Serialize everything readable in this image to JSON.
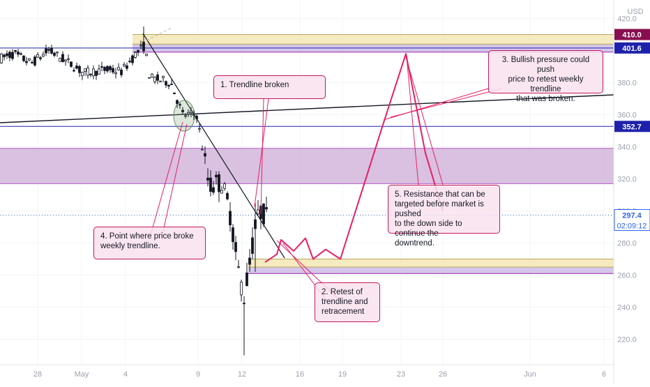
{
  "currency": "USD",
  "chart_data": {
    "type": "candlestick",
    "ylim": [
      200,
      428
    ],
    "y_ticks": [
      "420.0",
      "400.0",
      "380.0",
      "360.0",
      "340.0",
      "320.0",
      "300.0",
      "280.0",
      "260.0",
      "240.0",
      "220.0"
    ],
    "x_ticks": [
      "28",
      "May",
      "4",
      "9",
      "12",
      "16",
      "19",
      "23",
      "26",
      "Jun",
      "6"
    ],
    "price_labels": [
      {
        "text": "410.0",
        "value": 410.0,
        "color": "#880e4f"
      },
      {
        "text": "401.6",
        "value": 401.6,
        "color": "#1e22aa"
      },
      {
        "text": "352.7",
        "value": 352.7,
        "color": "#1e22aa"
      },
      {
        "text": "297.4",
        "value": 297.4,
        "color": "#2962ff"
      }
    ],
    "countdown": "02:09:12",
    "horizontal_levels": [
      401.6,
      352.7,
      297.4
    ],
    "zones": [
      {
        "top": 410,
        "bottom": 404,
        "color": "#f3e6b5"
      },
      {
        "top": 404,
        "bottom": 399,
        "color": "#cdbde6"
      },
      {
        "top": 339,
        "bottom": 317,
        "color": "#d3b6dc"
      },
      {
        "top": 270,
        "bottom": 265,
        "color": "#f3e6b5"
      },
      {
        "top": 265,
        "bottom": 261,
        "color": "#cdbde6"
      }
    ],
    "projection": [
      268,
      273,
      282,
      275,
      283,
      270,
      276,
      270,
      355,
      398,
      336,
      300
    ],
    "annotations": [
      {
        "id": "note-1",
        "text": "1. Trendline broken"
      },
      {
        "id": "note-2",
        "text": "2. Retest of\ntrendline and\nretracement"
      },
      {
        "id": "note-3",
        "text": "3. Bullish pressure could push\nprice to retest weekly trendline\nthat was broken."
      },
      {
        "id": "note-4",
        "text": "4. Point where price broke\nweekly trendline."
      },
      {
        "id": "note-5",
        "text": "5. Resistance that can be\ntargeted before market is pushed\nto the down side to continue the\ndowntrend."
      }
    ]
  }
}
